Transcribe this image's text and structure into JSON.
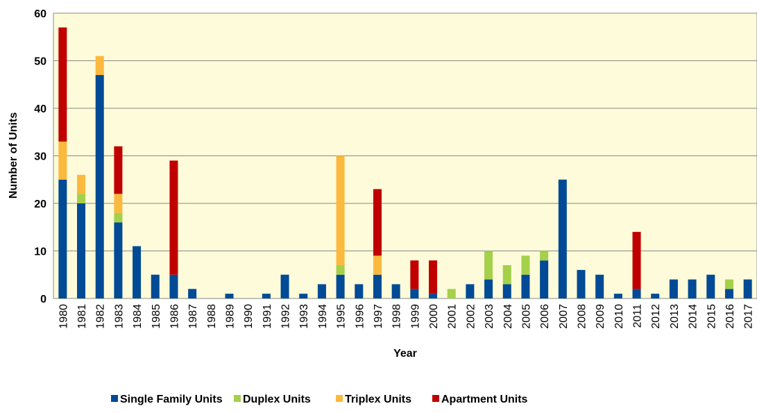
{
  "chart_data": {
    "type": "stacked-bar",
    "x_label": "Year",
    "y_label": "Number of Units",
    "categories": [
      "1980",
      "1981",
      "1982",
      "1983",
      "1984",
      "1985",
      "1986",
      "1987",
      "1988",
      "1989",
      "1990",
      "1991",
      "1992",
      "1993",
      "1994",
      "1995",
      "1996",
      "1997",
      "1998",
      "1999",
      "2000",
      "2001",
      "2002",
      "2003",
      "2004",
      "2005",
      "2006",
      "2007",
      "2008",
      "2009",
      "2010",
      "2011",
      "2012",
      "2013",
      "2014",
      "2015",
      "2016",
      "2017"
    ],
    "series": [
      {
        "name": "Single Family Units",
        "color": "#004a96",
        "values": [
          25,
          20,
          47,
          16,
          11,
          5,
          5,
          2,
          0,
          1,
          0,
          1,
          5,
          1,
          3,
          5,
          3,
          5,
          3,
          2,
          1,
          0,
          3,
          4,
          3,
          5,
          8,
          25,
          6,
          5,
          1,
          2,
          1,
          4,
          4,
          5,
          2,
          4
        ]
      },
      {
        "name": "Duplex Units",
        "color": "#a4d04a",
        "values": [
          0,
          2,
          0,
          2,
          0,
          0,
          0,
          0,
          0,
          0,
          0,
          0,
          0,
          0,
          0,
          2,
          0,
          0,
          0,
          0,
          0,
          2,
          0,
          6,
          4,
          4,
          2,
          0,
          0,
          0,
          0,
          0,
          0,
          0,
          0,
          0,
          2,
          0
        ]
      },
      {
        "name": "Triplex Units",
        "color": "#fbb93e",
        "values": [
          8,
          4,
          4,
          4,
          0,
          0,
          0,
          0,
          0,
          0,
          0,
          0,
          0,
          0,
          0,
          23,
          0,
          4,
          0,
          0,
          0,
          0,
          0,
          0,
          0,
          0,
          0,
          0,
          0,
          0,
          0,
          0,
          0,
          0,
          0,
          0,
          0,
          0
        ]
      },
      {
        "name": "Apartment Units",
        "color": "#c00000",
        "values": [
          24,
          0,
          0,
          10,
          0,
          0,
          24,
          0,
          0,
          0,
          0,
          0,
          0,
          0,
          0,
          0,
          0,
          14,
          0,
          6,
          7,
          0,
          0,
          0,
          0,
          0,
          0,
          0,
          0,
          0,
          0,
          12,
          0,
          0,
          0,
          0,
          0,
          0
        ]
      }
    ],
    "ylim": [
      0,
      60
    ],
    "yticks": [
      0,
      10,
      20,
      30,
      40,
      50,
      60
    ],
    "grid": true,
    "background": "#fdfbd9",
    "legend": "bottom"
  }
}
